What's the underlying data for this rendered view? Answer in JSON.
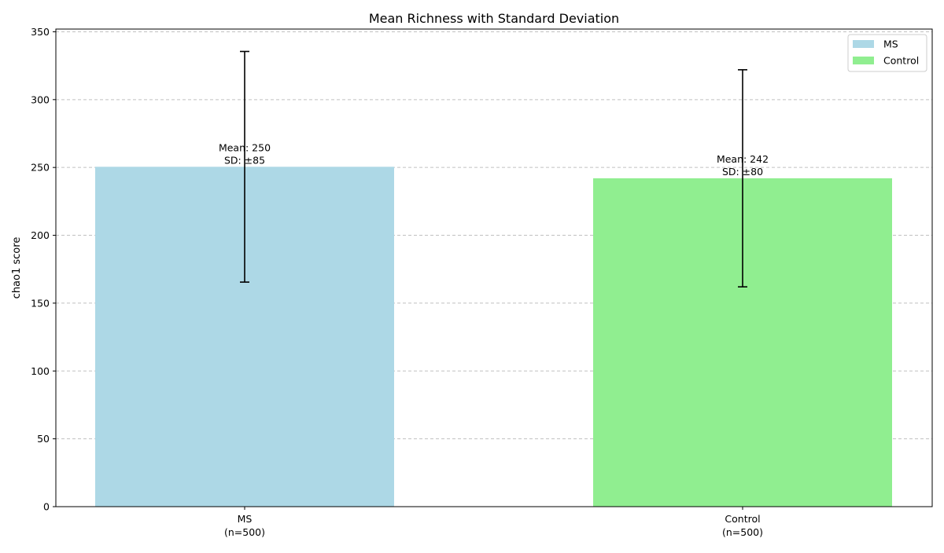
{
  "chart_data": {
    "type": "bar",
    "title": "Mean Richness with Standard Deviation",
    "ylabel": "chao1 score",
    "xlabel": "",
    "ylim": [
      0,
      352
    ],
    "yticks": [
      0,
      50,
      100,
      150,
      200,
      250,
      300,
      350
    ],
    "grid": "y-dashed",
    "legend_position": "top-right",
    "categories": [
      "MS",
      "Control"
    ],
    "category_labels": [
      {
        "line1": "MS",
        "line2": "(n=500)"
      },
      {
        "line1": "Control",
        "line2": "(n=500)"
      }
    ],
    "values": [
      250.5,
      242
    ],
    "sd": [
      85,
      80
    ],
    "colors": [
      "#add8e6",
      "#90ee90"
    ],
    "bar_labels": [
      {
        "line1": "Mean: 250",
        "line2": "SD: ±85"
      },
      {
        "line1": "Mean: 242",
        "line2": "SD: ±80"
      }
    ],
    "legend": [
      {
        "name": "MS",
        "color": "#add8e6"
      },
      {
        "name": "Control",
        "color": "#90ee90"
      }
    ]
  }
}
